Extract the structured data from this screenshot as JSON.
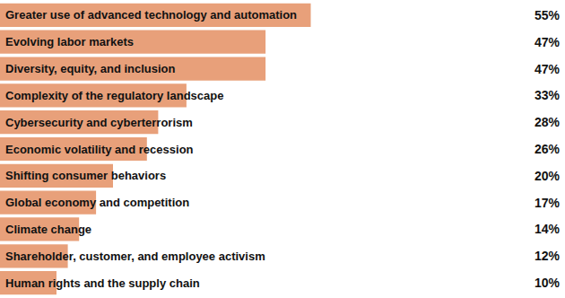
{
  "chart_data": {
    "type": "bar",
    "orientation": "horizontal",
    "categories": [
      "Greater use of advanced technology and automation",
      "Evolving labor markets",
      "Diversity, equity, and inclusion",
      "Complexity of the regulatory landscape",
      "Cybersecurity and cyberterrorism",
      "Economic volatility and recession",
      "Shifting consumer behaviors",
      "Global economy and competition",
      "Climate change",
      "Shareholder, customer, and employee activism",
      "Human rights and the supply chain"
    ],
    "values": [
      55,
      47,
      47,
      33,
      28,
      26,
      20,
      17,
      14,
      12,
      10
    ],
    "value_labels": [
      "55%",
      "47%",
      "47%",
      "33%",
      "28%",
      "26%",
      "20%",
      "17%",
      "14%",
      "12%",
      "10%"
    ],
    "color": "#e8a07a",
    "xlim": [
      0,
      100
    ],
    "xticks": [
      0,
      100
    ],
    "grid": false,
    "data_labels": true,
    "tick_labels": false
  }
}
